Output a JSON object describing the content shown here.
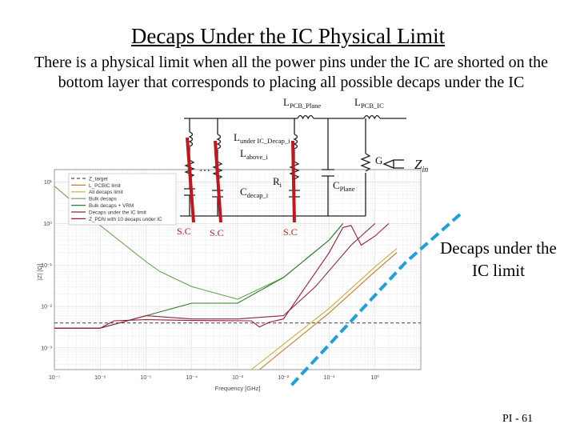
{
  "slide": {
    "title": "Decaps Under the IC Physical Limit",
    "body": "There is a physical limit when all the power pins under the IC are shorted on the bottom layer that corresponds to placing all possible decaps under the IC",
    "callout": "Decaps under the IC limit",
    "footer": "PI - 61"
  },
  "schematic": {
    "l_pcb_plane": "PCB_Plane",
    "l_pcb_ic": "PCB_IC",
    "l_under_ic": "under IC_Decap_i",
    "l_above": "above_i",
    "r_label": "i",
    "c_decap": "decap_i",
    "c_plane": "Plane",
    "g_label": "G",
    "zin_label": "in",
    "dots": "…",
    "sc_labels": [
      "S.C",
      "S.C",
      "S.C"
    ]
  },
  "chart_data": {
    "type": "line",
    "xlabel": "Frequency [GHz]",
    "ylabel": "|Z| [Ω]",
    "xscale": "log",
    "yscale": "log",
    "xlim": [
      1e-07,
      10
    ],
    "ylim": [
      0.0003,
      20
    ],
    "x_ticks": [
      "10⁻⁷",
      "10⁻⁶",
      "10⁻⁵",
      "10⁻⁴",
      "10⁻³",
      "10⁻²",
      "10⁻¹",
      "10⁰"
    ],
    "y_ticks": [
      "10¹",
      "10⁰",
      "10⁻¹",
      "10⁻²",
      "10⁻³"
    ],
    "legend_position": "top-left",
    "series": [
      {
        "name": "Z_target",
        "color": "#555555",
        "dash": "4,3",
        "points": [
          [
            1e-07,
            0.004
          ],
          [
            10,
            0.004
          ]
        ]
      },
      {
        "name": "L_PCBIC limit",
        "color": "#c97a2b",
        "points": [
          [
            0.003,
            0.0002
          ],
          [
            0.1,
            0.007
          ],
          [
            1,
            0.07
          ],
          [
            3,
            0.2
          ]
        ]
      },
      {
        "name": "All decaps limit",
        "color": "#c9b03a",
        "points": [
          [
            0.002,
            0.0002
          ],
          [
            0.1,
            0.009
          ],
          [
            1,
            0.09
          ],
          [
            3,
            0.25
          ]
        ]
      },
      {
        "name": "Bulk decaps",
        "color": "#6aa84f",
        "points": [
          [
            1e-07,
            8
          ],
          [
            1e-06,
            0.9
          ],
          [
            1e-05,
            0.12
          ],
          [
            2e-05,
            0.07
          ],
          [
            0.0001,
            0.03
          ],
          [
            0.001,
            0.015
          ],
          [
            0.01,
            0.05
          ],
          [
            0.1,
            0.4
          ],
          [
            0.2,
            1
          ]
        ]
      },
      {
        "name": "Bulk decaps + VRM",
        "color": "#2f7d2f",
        "points": [
          [
            1e-07,
            0.003
          ],
          [
            1e-06,
            0.003
          ],
          [
            1e-05,
            0.006
          ],
          [
            0.0001,
            0.012
          ],
          [
            0.001,
            0.012
          ],
          [
            0.01,
            0.05
          ],
          [
            0.1,
            0.4
          ],
          [
            0.2,
            1
          ]
        ]
      },
      {
        "name": "Decaps under the IC limit",
        "color": "#8a2a3a",
        "points": [
          [
            1e-07,
            0.003
          ],
          [
            1e-06,
            0.003
          ],
          [
            1e-05,
            0.006
          ],
          [
            0.0001,
            0.005
          ],
          [
            0.001,
            0.005
          ],
          [
            0.01,
            0.006
          ],
          [
            0.05,
            0.03
          ],
          [
            0.3,
            0.3
          ],
          [
            1,
            1
          ]
        ]
      },
      {
        "name": "Z_PDN with 10 decaps under IC",
        "color": "#a0183a",
        "points": [
          [
            1e-07,
            0.003
          ],
          [
            1e-06,
            0.003
          ],
          [
            2e-06,
            0.0045
          ],
          [
            1e-05,
            0.0048
          ],
          [
            0.0001,
            0.0046
          ],
          [
            0.002,
            0.0045
          ],
          [
            0.003,
            0.0032
          ],
          [
            0.005,
            0.0042
          ],
          [
            0.01,
            0.005
          ],
          [
            0.1,
            0.2
          ],
          [
            0.2,
            0.8
          ],
          [
            0.3,
            0.9
          ],
          [
            0.5,
            0.3
          ],
          [
            1,
            0.5
          ],
          [
            2,
            1
          ]
        ]
      }
    ]
  }
}
